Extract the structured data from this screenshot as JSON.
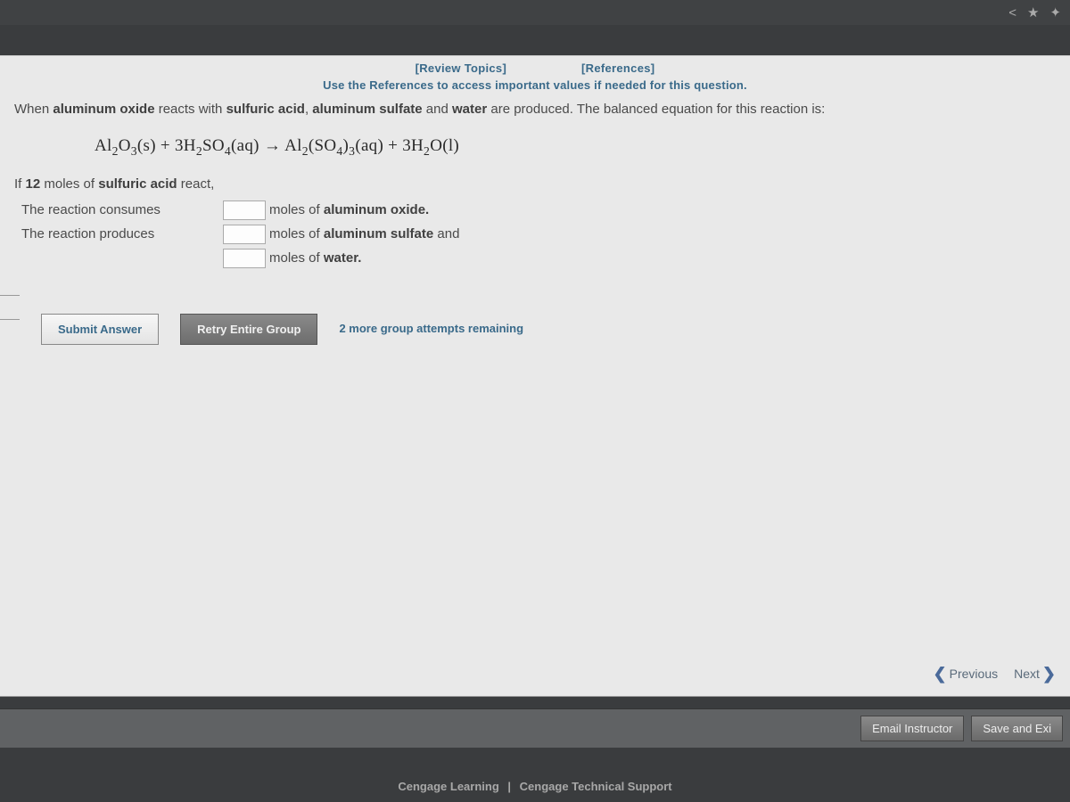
{
  "browser": {
    "icons": [
      "<",
      "★",
      "✦"
    ]
  },
  "links": {
    "review": "[Review Topics]",
    "references": "[References]",
    "instruction": "Use the References to access important values if needed for this question."
  },
  "question": {
    "intro_html": "When <b>aluminum oxide</b> reacts with <b>sulfuric acid</b>, <b>aluminum sulfate</b> and <b>water</b> are produced. The balanced equation for this reaction is:",
    "equation_html": "Al<sub>2</sub>O<sub>3</sub>(s) + 3H<sub>2</sub>SO<sub>4</sub>(aq) → Al<sub>2</sub>(SO<sub>4</sub>)<sub>3</sub>(aq) + 3H<sub>2</sub>O(l)",
    "condition_html": "If <b>12</b> moles of <b>sulfuric acid</b> react,",
    "line1_before": "The reaction consumes",
    "line1_after_html": "moles of <b>aluminum oxide.</b>",
    "line2_before": "The reaction produces",
    "line2_after_html": "moles of <b>aluminum sulfate</b> and",
    "line3_after_html": "moles of <b>water.</b>"
  },
  "buttons": {
    "submit": "Submit Answer",
    "retry": "Retry Entire Group",
    "attempts": "2 more group attempts remaining",
    "previous": "Previous",
    "next": "Next",
    "email": "Email Instructor",
    "save": "Save and Exi"
  },
  "footer": {
    "left": "Cengage Learning",
    "right": "Cengage Technical Support",
    "sep": "|"
  },
  "colors": {
    "page_bg": "#3a3c3e",
    "panel_bg": "#e9e9e9",
    "link_color": "#3a6a8a",
    "text_color": "#4a4a4a"
  }
}
